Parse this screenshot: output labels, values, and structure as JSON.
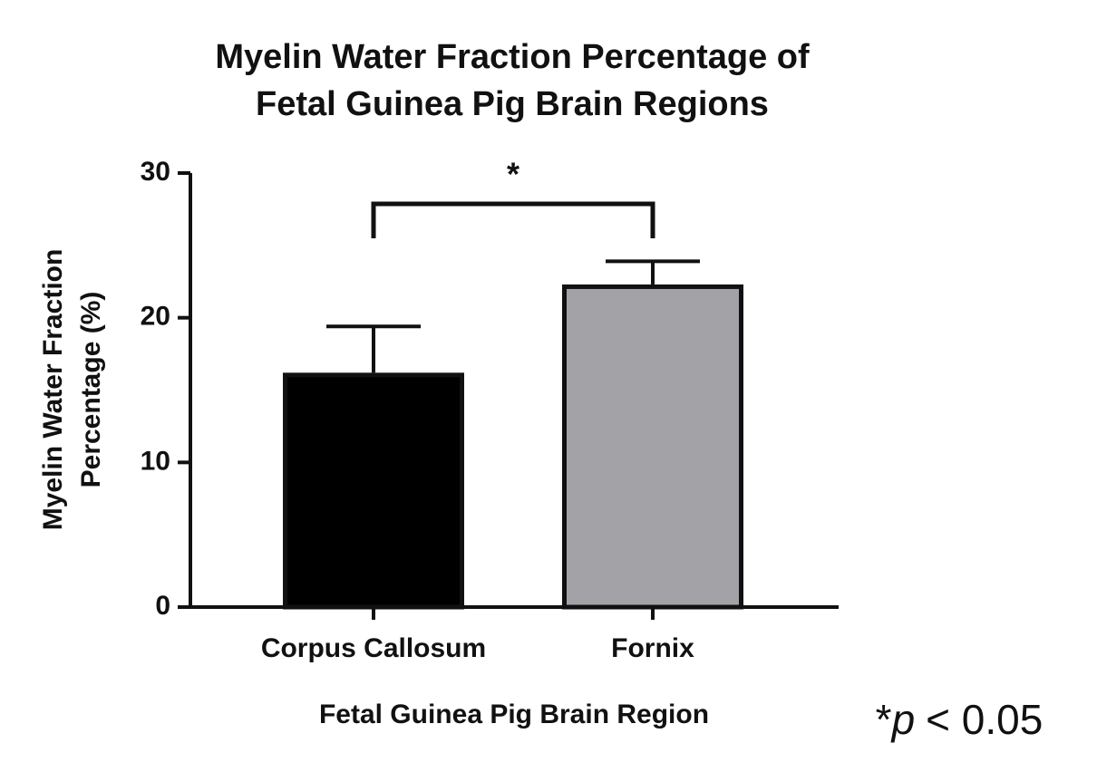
{
  "chart_data": {
    "type": "bar",
    "title": [
      "Myelin Water Fraction Percentage of",
      "Fetal Guinea Pig Brain Regions"
    ],
    "y_label": [
      "Myelin Water Fraction",
      "Percentage (%)"
    ],
    "x_label": "Fetal Guinea Pig Brain Region",
    "categories": [
      "Corpus Callosum",
      "Fornix"
    ],
    "values": [
      16.2,
      22.3
    ],
    "errors": [
      3.2,
      1.6
    ],
    "colors": [
      "#000000",
      "#a3a2a7"
    ],
    "ylim": [
      0,
      30
    ],
    "yticks": [
      0,
      10,
      20,
      30
    ],
    "significance": "*",
    "note": [
      "*",
      "p",
      "< 0.05"
    ]
  }
}
